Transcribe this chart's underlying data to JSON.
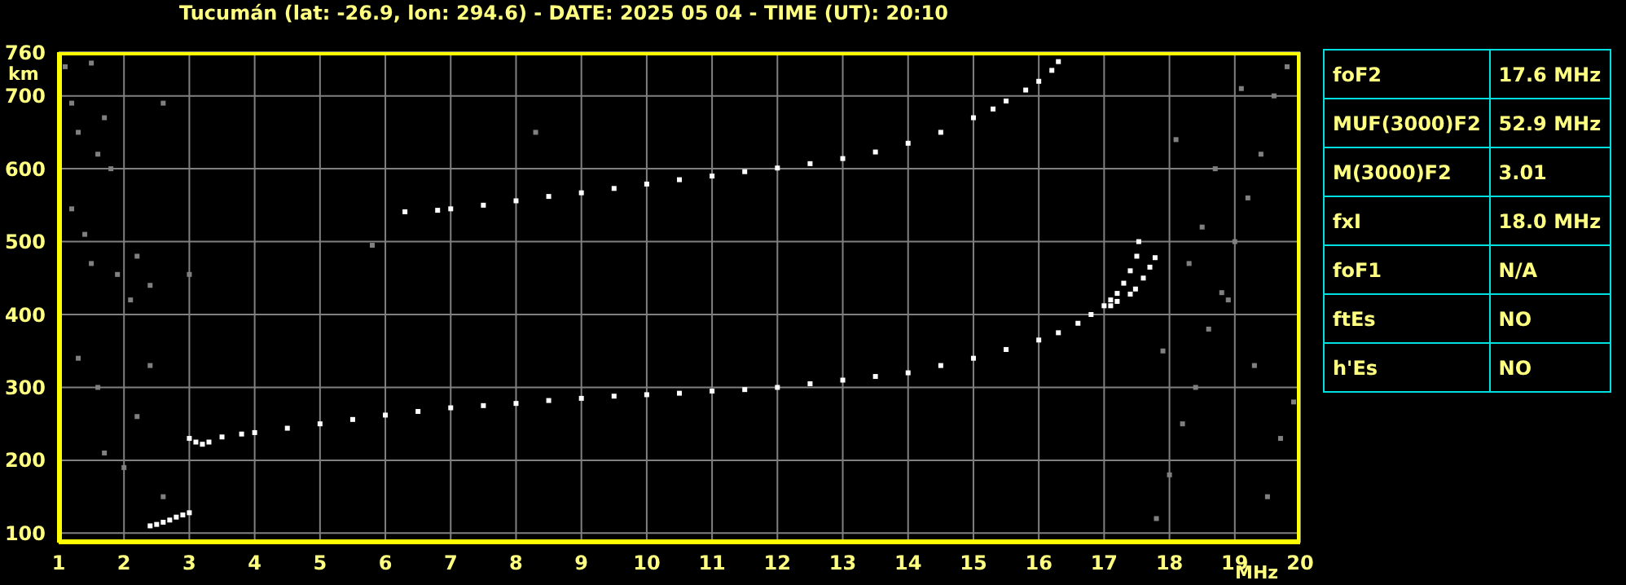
{
  "chart_data": [
    {
      "type": "scatter",
      "title": "Tucumán (lat: -26.9, lon: 294.6) - DATE: 2025 05 04 - TIME (UT): 20:10",
      "xlabel": "MHz",
      "ylabel": "km",
      "xlim": [
        1,
        20
      ],
      "xticks": [
        1,
        2,
        3,
        4,
        5,
        6,
        7,
        8,
        9,
        10,
        11,
        12,
        13,
        14,
        15,
        16,
        17,
        18,
        19,
        20
      ],
      "ylim": [
        87,
        760
      ],
      "yticks": [
        100,
        200,
        300,
        400,
        500,
        600,
        700,
        760
      ],
      "grid": true,
      "marker": "square",
      "series": [
        {
          "color": "#ffffff",
          "x": [
            2.4,
            2.5,
            2.6,
            2.7,
            2.8,
            2.9,
            3.0
          ],
          "values": [
            110,
            112,
            115,
            118,
            122,
            125,
            128
          ]
        },
        {
          "color": "#ffffff",
          "x": [
            3.0,
            3.1,
            3.2,
            3.3,
            3.5,
            3.8,
            4.0,
            4.5,
            5.0,
            5.5,
            6.0,
            6.5,
            7.0,
            7.5,
            8.0,
            8.5,
            9.0,
            9.5,
            10.0,
            10.5,
            11.0,
            11.5,
            12.0,
            12.5,
            13.0,
            13.5,
            14.0,
            14.5,
            15.0,
            15.5,
            16.0,
            16.3,
            16.6,
            16.8,
            17.0,
            17.1,
            17.2,
            17.3,
            17.4,
            17.5,
            17.53
          ],
          "values": [
            230,
            225,
            222,
            225,
            232,
            236,
            238,
            244,
            250,
            256,
            262,
            267,
            272,
            275,
            278,
            282,
            285,
            288,
            290,
            292,
            295,
            297,
            300,
            305,
            310,
            315,
            320,
            330,
            340,
            352,
            365,
            375,
            388,
            400,
            412,
            420,
            429,
            443,
            460,
            480,
            500
          ]
        },
        {
          "color": "#ffffff",
          "x": [
            17.1,
            17.2,
            17.4,
            17.48,
            17.6,
            17.7,
            17.78
          ],
          "values": [
            412,
            418,
            428,
            435,
            450,
            465,
            478
          ]
        },
        {
          "color": "#ffffff",
          "x": [
            6.3,
            6.8,
            7.0,
            7.5,
            8.0,
            8.5,
            9.0,
            9.5,
            10.0,
            10.5,
            11.0,
            11.5,
            12.0,
            12.5,
            13.0,
            13.5,
            14.0,
            14.5,
            15.0,
            15.3,
            15.5,
            15.8,
            16.0,
            16.2,
            16.3
          ],
          "values": [
            541,
            543,
            545,
            550,
            556,
            562,
            567,
            573,
            579,
            585,
            590,
            596,
            601,
            607,
            614,
            623,
            635,
            650,
            670,
            682,
            693,
            708,
            720,
            735,
            747
          ]
        },
        {
          "color": "#808080",
          "x": [
            1.1,
            1.2,
            1.3,
            1.5,
            1.6,
            1.7,
            1.8,
            1.2,
            1.4,
            1.5,
            1.9,
            2.1,
            2.2,
            2.4,
            2.6,
            3.0,
            1.3,
            1.6,
            2.2,
            2.4,
            1.7,
            2.0,
            2.6,
            17.8,
            18.0,
            18.2,
            18.4,
            18.6,
            18.8,
            19.0,
            19.2,
            19.4,
            19.6,
            19.8,
            18.1,
            18.5,
            18.9,
            19.3,
            19.7,
            17.9,
            18.3,
            18.7,
            19.1,
            19.5,
            19.9,
            8.3,
            5.8
          ],
          "values": [
            740,
            690,
            650,
            745,
            620,
            670,
            600,
            545,
            510,
            470,
            455,
            420,
            480,
            440,
            690,
            455,
            340,
            300,
            260,
            330,
            210,
            190,
            150,
            120,
            180,
            250,
            300,
            380,
            430,
            500,
            560,
            620,
            700,
            740,
            640,
            520,
            420,
            330,
            230,
            350,
            470,
            600,
            710,
            150,
            280,
            650,
            495
          ]
        }
      ]
    },
    {
      "type": "other",
      "annotations": [
        "foF2",
        "17.6 MHz",
        "MUF(3000)F2",
        "52.9 MHz",
        "M(3000)F2",
        "3.01",
        "fxI",
        "18.0 MHz",
        "foF1",
        "N/A",
        "ftEs",
        "NO",
        "h'Es",
        "NO"
      ]
    }
  ]
}
